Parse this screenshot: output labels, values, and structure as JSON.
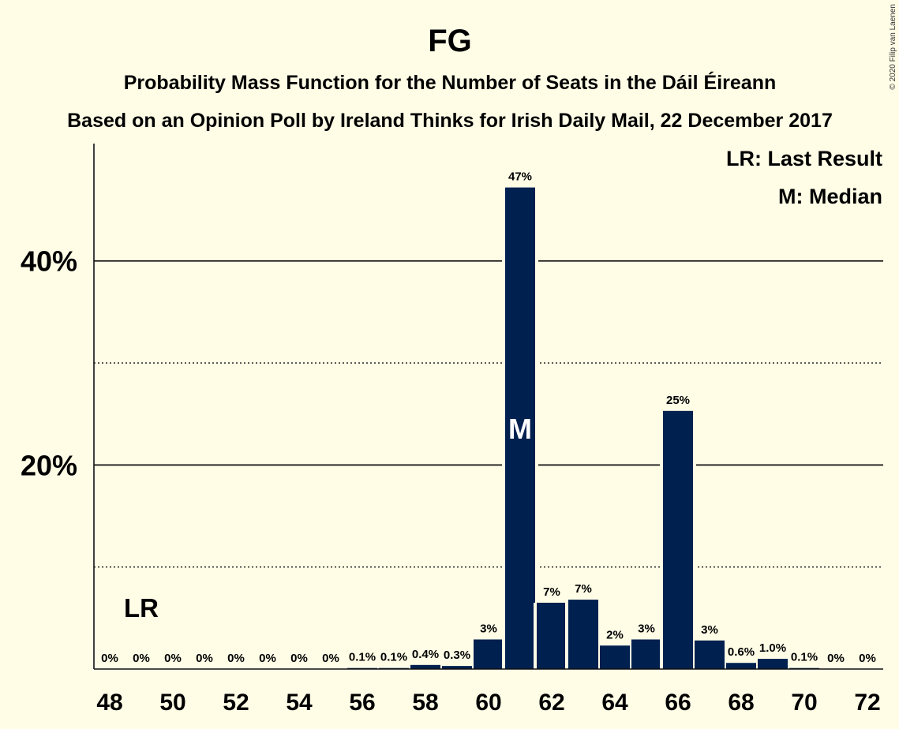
{
  "copyright": "© 2020 Filip van Laenen",
  "chart_data": {
    "type": "bar",
    "title": "FG",
    "subtitle_1": "Probability Mass Function for the Number of Seats in the Dáil Éireann",
    "subtitle_2": "Based on an Opinion Poll by Ireland Thinks for Irish Daily Mail, 22 December 2017",
    "x": [
      48,
      49,
      50,
      51,
      52,
      53,
      54,
      55,
      56,
      57,
      58,
      59,
      60,
      61,
      62,
      63,
      64,
      65,
      66,
      67,
      68,
      69,
      70,
      71,
      72
    ],
    "values": [
      0,
      0,
      0,
      0,
      0,
      0,
      0,
      0,
      0.1,
      0.1,
      0.4,
      0.3,
      2.9,
      47.2,
      6.5,
      6.8,
      2.3,
      2.9,
      25.3,
      2.8,
      0.6,
      1.0,
      0.1,
      0,
      0
    ],
    "data_labels": [
      "0%",
      "0%",
      "0%",
      "0%",
      "0%",
      "0%",
      "0%",
      "0%",
      "0.1%",
      "0.1%",
      "0.4%",
      "0.3%",
      "3%",
      "47%",
      "7%",
      "7%",
      "2%",
      "3%",
      "25%",
      "3%",
      "0.6%",
      "1.0%",
      "0.1%",
      "0%",
      "0%"
    ],
    "x_ticks": [
      "48",
      "50",
      "52",
      "54",
      "56",
      "58",
      "60",
      "62",
      "64",
      "66",
      "68",
      "70",
      "72"
    ],
    "y_ticks": [
      {
        "value": 20,
        "label": "20%"
      },
      {
        "value": 40,
        "label": "40%"
      }
    ],
    "y_minor_gridlines": [
      10,
      30
    ],
    "ylim": [
      0,
      51.5
    ],
    "bar_color": "#00204F",
    "background_color": "#FFFDE6",
    "last_result": {
      "seat": 49,
      "label": "LR"
    },
    "median": {
      "seat": 61,
      "label": "M"
    },
    "legend": {
      "position": "top-right",
      "entries": [
        "LR: Last Result",
        "M: Median"
      ]
    },
    "grid": true
  }
}
